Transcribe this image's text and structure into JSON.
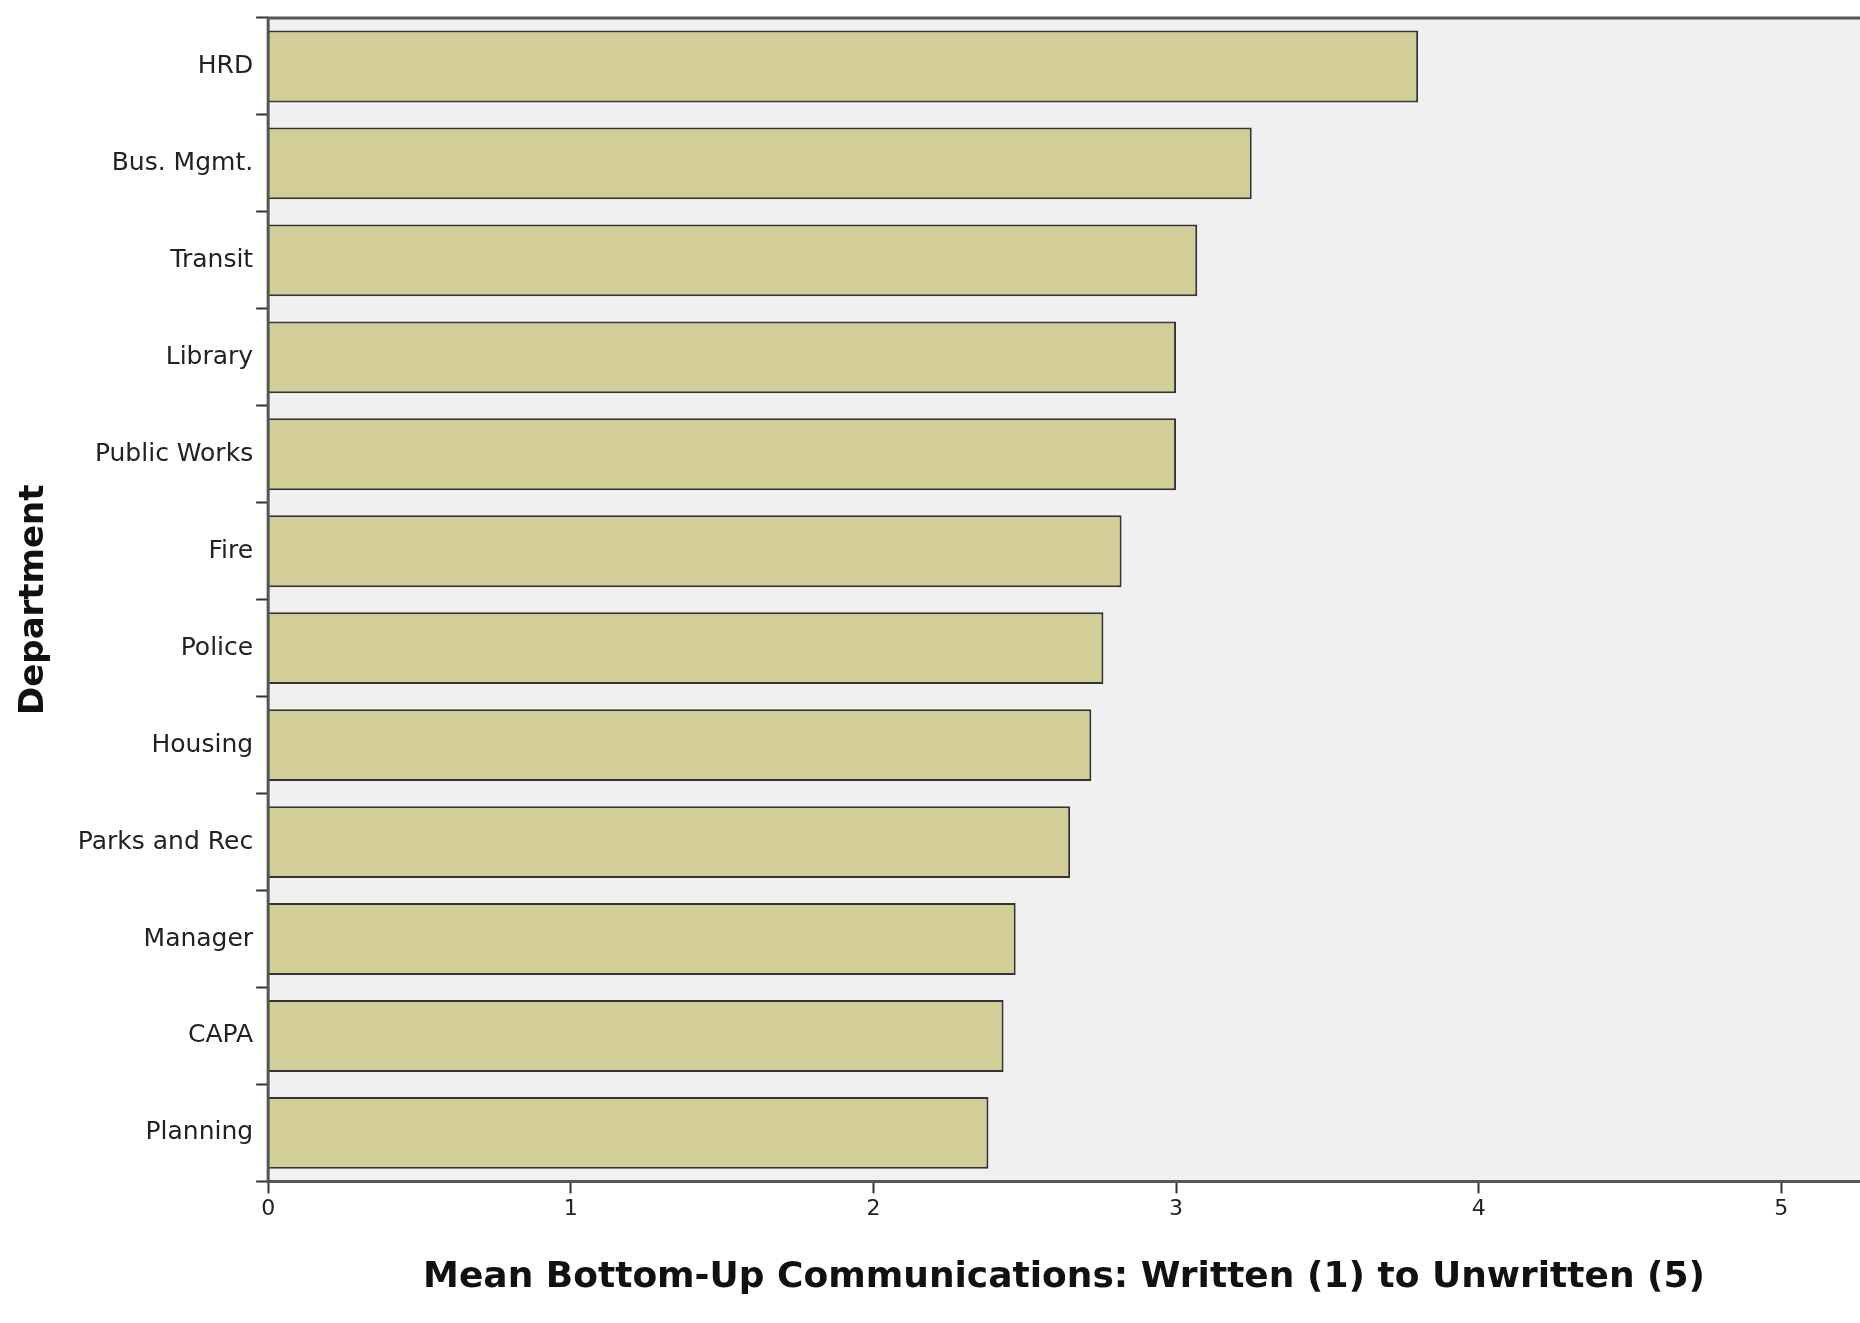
{
  "chart_data": {
    "type": "bar",
    "orientation": "horizontal",
    "xlabel": "Mean Bottom-Up Communications: Written (1) to Unwritten (5)",
    "ylabel": "Department",
    "categories": [
      "HRD",
      "Bus. Mgmt.",
      "Transit",
      "Library",
      "Public Works",
      "Fire",
      "Police",
      "Housing",
      "Parks and Rec",
      "Manager",
      "CAPA",
      "Planning"
    ],
    "values": [
      3.8,
      3.25,
      3.07,
      3.0,
      3.0,
      2.82,
      2.76,
      2.72,
      2.65,
      2.47,
      2.43,
      2.38
    ],
    "color": "#d3ce97",
    "xlim": [
      0,
      5.26
    ],
    "xticks": [
      0,
      1,
      2,
      3,
      4,
      5
    ],
    "grid": false,
    "legend": false
  }
}
